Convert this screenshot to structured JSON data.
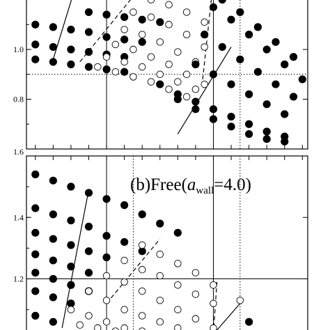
{
  "chart_data": [
    {
      "type": "scatter",
      "panel": "a",
      "title": "",
      "xlabel": "",
      "ylabel": "",
      "ylim": [
        0.6,
        1.21
      ],
      "y_ticks": [
        0.8,
        1.0
      ],
      "y_tick_labels": [
        "0.8",
        "1.0"
      ],
      "y_axis_max_label": "1.6",
      "reference_lines": {
        "horizontal": [
          0.9
        ],
        "vertical_solid": [
          4,
          10
        ],
        "vertical_dotted": [
          11.5
        ]
      },
      "series": [
        {
          "style": "filled",
          "x": [
            0,
            1,
            2,
            3,
            4,
            5
          ],
          "y": [
            0.96,
            0.95,
            0.94,
            0.93,
            0.92,
            0.91
          ]
        },
        {
          "style": "filled",
          "x": [
            0,
            1,
            2,
            3,
            4,
            5
          ],
          "y": [
            1.02,
            1.01,
            1.0,
            0.99,
            0.98,
            0.97
          ]
        },
        {
          "style": "filled",
          "x": [
            0,
            1,
            2,
            3,
            4,
            5,
            6
          ],
          "y": [
            1.1,
            1.09,
            1.08,
            1.07,
            1.05,
            1.04,
            1.03
          ]
        },
        {
          "style": "filled",
          "x": [
            3,
            4,
            5,
            6,
            7
          ],
          "y": [
            1.15,
            1.14,
            1.13,
            1.12,
            1.11
          ]
        },
        {
          "style": "open",
          "x": [
            3.5,
            4.5,
            5.5,
            6.5,
            7.5,
            8.5
          ],
          "y": [
            0.93,
            0.91,
            0.89,
            0.87,
            0.84,
            0.81
          ]
        },
        {
          "style": "open",
          "x": [
            4,
            5,
            6,
            7,
            8,
            9
          ],
          "y": [
            0.97,
            0.95,
            0.93,
            0.9,
            0.87,
            0.84
          ]
        },
        {
          "style": "open",
          "x": [
            4.5,
            5.5,
            6.5,
            7.5,
            8.5,
            9.5
          ],
          "y": [
            1.02,
            1.0,
            0.97,
            0.94,
            0.9,
            0.86
          ]
        },
        {
          "style": "open",
          "x": [
            5,
            6,
            7,
            8,
            9,
            10
          ],
          "y": [
            1.08,
            1.06,
            1.03,
            0.99,
            0.95,
            0.9
          ]
        },
        {
          "style": "open",
          "x": [
            5.5,
            6.5,
            7.5,
            8.5,
            9.5
          ],
          "y": [
            1.15,
            1.13,
            1.1,
            1.06,
            1.01
          ]
        },
        {
          "style": "open",
          "x": [
            6.5,
            7.5,
            8.5,
            9.5
          ],
          "y": [
            1.2,
            1.18,
            1.15,
            1.11
          ]
        },
        {
          "style": "filled",
          "x": [
            7,
            8,
            9,
            10,
            11,
            12,
            13,
            14
          ],
          "y": [
            0.86,
            0.82,
            0.79,
            0.76,
            0.73,
            0.7,
            0.67,
            0.65
          ]
        },
        {
          "style": "filled",
          "x": [
            8,
            9,
            10,
            11,
            12,
            13,
            14
          ],
          "y": [
            0.8,
            0.76,
            0.72,
            0.69,
            0.66,
            0.64,
            0.63
          ]
        },
        {
          "style": "filled",
          "x": [
            9,
            10,
            11,
            12,
            13,
            14
          ],
          "y": [
            0.94,
            0.9,
            0.86,
            0.82,
            0.78,
            0.74
          ]
        },
        {
          "style": "filled",
          "x": [
            9.5,
            10.5,
            11.5,
            12.5,
            13.5,
            14.5
          ],
          "y": [
            1.06,
            1.01,
            0.96,
            0.91,
            0.86,
            0.81
          ]
        },
        {
          "style": "filled",
          "x": [
            10,
            11,
            12,
            13,
            14,
            15
          ],
          "y": [
            1.17,
            1.12,
            1.06,
            1.0,
            0.94,
            0.88
          ]
        },
        {
          "style": "filled",
          "x": [
            10.5,
            11.5,
            12.5,
            13.5,
            14.5
          ],
          "y": [
            1.2,
            1.15,
            1.09,
            1.03,
            0.97
          ]
        }
      ],
      "guide_lines": [
        {
          "style": "solid",
          "x": [
            1,
            2.2
          ],
          "y": [
            0.96,
            1.24
          ]
        },
        {
          "style": "dashed",
          "x": [
            2.5,
            5.8
          ],
          "y": [
            0.95,
            1.24
          ]
        },
        {
          "style": "dashed",
          "x": [
            9.4,
            9.9
          ],
          "y": [
            0.88,
            1.21
          ]
        },
        {
          "style": "solid",
          "x": [
            8,
            11
          ],
          "y": [
            0.66,
            1.01
          ]
        }
      ]
    },
    {
      "type": "scatter",
      "panel": "b",
      "title": "(b)Free(a_wall=4.0)",
      "title_main": "(b)Free(",
      "title_italic": "a",
      "title_sub": "wall",
      "title_end": "=4.0)",
      "xlabel": "",
      "ylabel": "",
      "ylim": [
        1.02,
        1.6
      ],
      "y_ticks": [
        1.2,
        1.4
      ],
      "y_tick_labels": [
        "1.2",
        "1.4"
      ],
      "reference_lines": {
        "horizontal": [
          1.2
        ],
        "vertical_solid": [
          4,
          10
        ],
        "vertical_dotted": [
          5.5,
          11.5
        ]
      },
      "series": [
        {
          "style": "filled",
          "x": [
            0,
            1,
            2,
            3,
            4,
            5,
            6,
            7,
            8
          ],
          "y": [
            1.54,
            1.52,
            1.5,
            1.48,
            1.46,
            1.44,
            1.41,
            1.38,
            1.35
          ]
        },
        {
          "style": "filled",
          "x": [
            0,
            1,
            2,
            3,
            4,
            5,
            6
          ],
          "y": [
            1.43,
            1.41,
            1.39,
            1.37,
            1.34,
            1.32,
            1.29
          ]
        },
        {
          "style": "filled",
          "x": [
            0,
            1,
            2,
            3,
            4
          ],
          "y": [
            1.35,
            1.33,
            1.31,
            1.29,
            1.27
          ]
        },
        {
          "style": "filled",
          "x": [
            0,
            1,
            2,
            3
          ],
          "y": [
            1.28,
            1.26,
            1.24,
            1.22
          ]
        },
        {
          "style": "filled",
          "x": [
            0,
            1,
            2,
            3
          ],
          "y": [
            1.22,
            1.2,
            1.18,
            1.16
          ]
        },
        {
          "style": "filled",
          "x": [
            0,
            1,
            2
          ],
          "y": [
            1.16,
            1.14,
            1.12
          ]
        },
        {
          "style": "filled",
          "x": [
            0,
            1
          ],
          "y": [
            1.08,
            1.06
          ]
        },
        {
          "style": "open",
          "x": [
            6,
            7,
            8,
            9,
            10
          ],
          "y": [
            1.31,
            1.28,
            1.25,
            1.22,
            1.18
          ]
        },
        {
          "style": "open",
          "x": [
            5,
            6,
            7,
            8,
            9,
            10
          ],
          "y": [
            1.26,
            1.23,
            1.21,
            1.18,
            1.15,
            1.12
          ]
        },
        {
          "style": "open",
          "x": [
            4,
            5,
            6,
            7,
            8,
            9,
            10
          ],
          "y": [
            1.21,
            1.19,
            1.16,
            1.13,
            1.1,
            1.07,
            1.04
          ]
        },
        {
          "style": "open",
          "x": [
            3,
            4,
            5,
            6,
            7,
            8,
            9
          ],
          "y": [
            1.16,
            1.13,
            1.1,
            1.08,
            1.06,
            1.04,
            1.02
          ]
        },
        {
          "style": "open",
          "x": [
            2,
            3,
            4,
            5,
            6,
            7
          ],
          "y": [
            1.1,
            1.08,
            1.06,
            1.04,
            1.03,
            1.02
          ]
        },
        {
          "style": "open",
          "x": [
            2.5,
            3.5,
            4.5,
            5.5
          ],
          "y": [
            1.05,
            1.04,
            1.03,
            1.02
          ]
        },
        {
          "style": "open",
          "x": [
            11.5
          ],
          "y": [
            1.13
          ]
        },
        {
          "style": "filled",
          "x": [
            12
          ],
          "y": [
            1.06
          ]
        },
        {
          "style": "filled",
          "x": [
            11
          ],
          "y": [
            1.02
          ]
        }
      ],
      "guide_lines": [
        {
          "style": "solid",
          "x": [
            1.5,
            3
          ],
          "y": [
            1.04,
            1.49
          ]
        },
        {
          "style": "dashed",
          "x": [
            4,
            7
          ],
          "y": [
            1.12,
            1.33
          ]
        },
        {
          "style": "dashed",
          "x": [
            10,
            10.2
          ],
          "y": [
            1.02,
            1.19
          ]
        },
        {
          "style": "solid",
          "x": [
            10,
            11.5
          ],
          "y": [
            1.02,
            1.12
          ]
        }
      ]
    }
  ]
}
